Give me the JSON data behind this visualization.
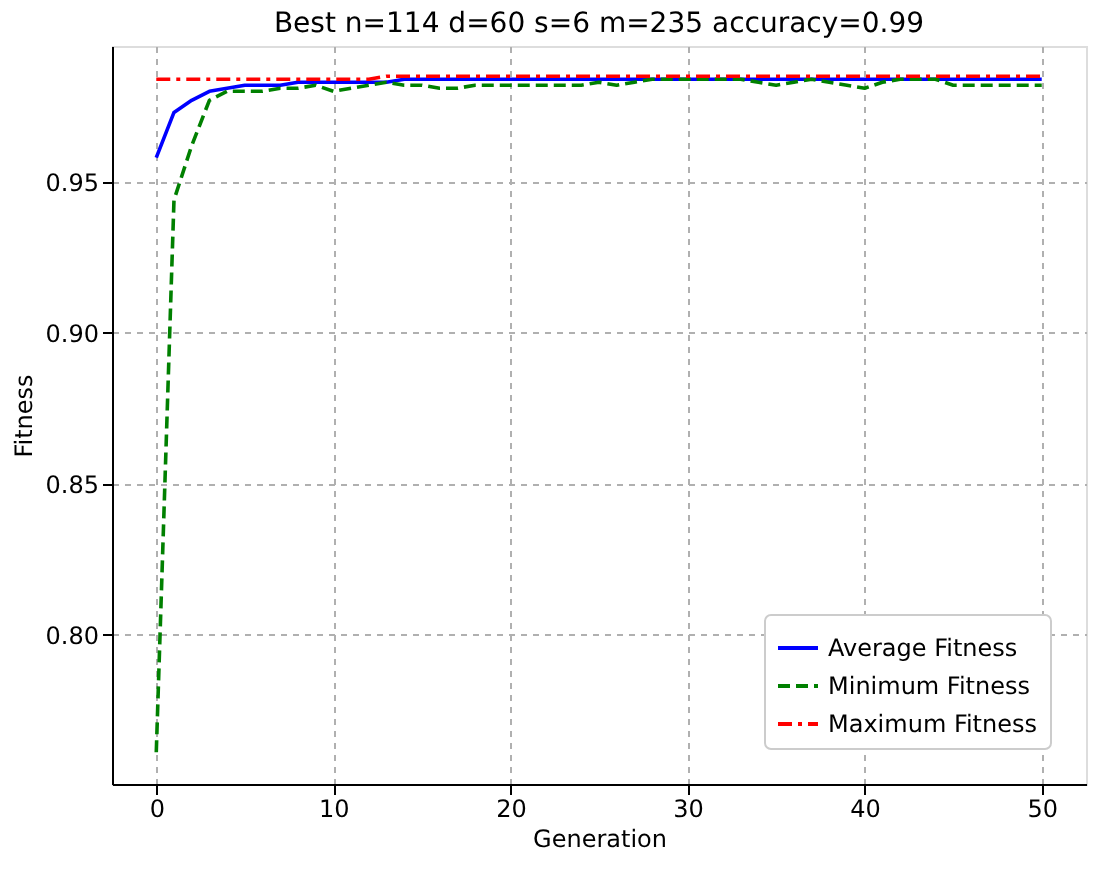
{
  "chart_data": {
    "type": "line",
    "title": "Best n=114 d=60 s=6 m=235 accuracy=0.99",
    "xlabel": "Generation",
    "ylabel": "Fitness",
    "x": [
      0,
      1,
      2,
      3,
      4,
      5,
      6,
      7,
      8,
      9,
      10,
      11,
      12,
      13,
      14,
      15,
      16,
      17,
      18,
      19,
      20,
      21,
      22,
      23,
      24,
      25,
      26,
      27,
      28,
      29,
      30,
      31,
      32,
      33,
      34,
      35,
      36,
      37,
      38,
      39,
      40,
      41,
      42,
      43,
      44,
      45,
      46,
      47,
      48,
      49,
      50
    ],
    "series": [
      {
        "name": "Average Fitness",
        "color": "#0000ff",
        "line_style": "solid",
        "values": [
          0.958,
          0.973,
          0.977,
          0.98,
          0.981,
          0.982,
          0.982,
          0.982,
          0.983,
          0.983,
          0.983,
          0.983,
          0.983,
          0.983,
          0.984,
          0.984,
          0.984,
          0.984,
          0.984,
          0.984,
          0.984,
          0.984,
          0.984,
          0.984,
          0.984,
          0.984,
          0.984,
          0.984,
          0.984,
          0.984,
          0.984,
          0.984,
          0.984,
          0.984,
          0.984,
          0.984,
          0.984,
          0.984,
          0.984,
          0.984,
          0.984,
          0.984,
          0.984,
          0.984,
          0.984,
          0.984,
          0.984,
          0.984,
          0.984,
          0.984,
          0.984
        ]
      },
      {
        "name": "Minimum Fitness",
        "color": "#008000",
        "line_style": "dashed",
        "values": [
          0.761,
          0.944,
          0.962,
          0.977,
          0.98,
          0.98,
          0.98,
          0.981,
          0.981,
          0.982,
          0.98,
          0.981,
          0.982,
          0.983,
          0.982,
          0.982,
          0.981,
          0.981,
          0.982,
          0.982,
          0.982,
          0.982,
          0.982,
          0.982,
          0.982,
          0.983,
          0.982,
          0.983,
          0.984,
          0.984,
          0.984,
          0.984,
          0.984,
          0.984,
          0.983,
          0.982,
          0.983,
          0.984,
          0.983,
          0.982,
          0.981,
          0.983,
          0.984,
          0.984,
          0.984,
          0.982,
          0.982,
          0.982,
          0.982,
          0.982,
          0.982
        ]
      },
      {
        "name": "Maximum Fitness",
        "color": "#ff0000",
        "line_style": "dashdot",
        "values": [
          0.984,
          0.984,
          0.984,
          0.984,
          0.984,
          0.984,
          0.984,
          0.984,
          0.984,
          0.984,
          0.984,
          0.984,
          0.984,
          0.985,
          0.985,
          0.985,
          0.985,
          0.985,
          0.985,
          0.985,
          0.985,
          0.985,
          0.985,
          0.985,
          0.985,
          0.985,
          0.985,
          0.985,
          0.985,
          0.985,
          0.985,
          0.985,
          0.985,
          0.985,
          0.985,
          0.985,
          0.985,
          0.985,
          0.985,
          0.985,
          0.985,
          0.985,
          0.985,
          0.985,
          0.985,
          0.985,
          0.985,
          0.985,
          0.985,
          0.985,
          0.985
        ]
      }
    ],
    "xlim": [
      -2.5,
      52.5
    ],
    "xticks": [
      0,
      10,
      20,
      30,
      40,
      50
    ],
    "ylim": [
      0.7505,
      0.995
    ],
    "yticks": [
      {
        "value": 0.8,
        "label": "0.80"
      },
      {
        "value": 0.85,
        "label": "0.85"
      },
      {
        "value": 0.9,
        "label": "0.90"
      },
      {
        "value": 0.95,
        "label": "0.95"
      }
    ],
    "grid": true,
    "legend": "bottom right",
    "marker": "none"
  }
}
